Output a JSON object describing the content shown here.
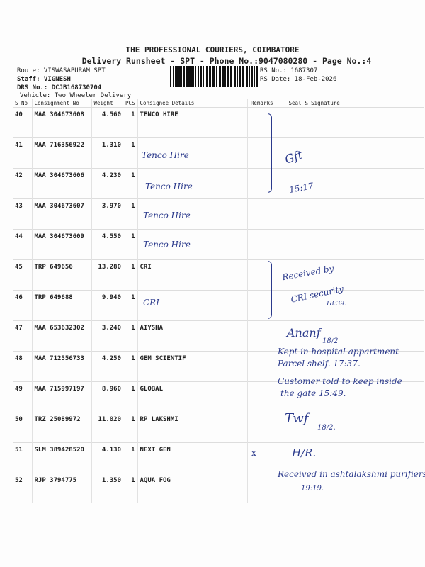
{
  "header": {
    "title": "THE PROFESSIONAL COURIERS, COIMBATORE",
    "subtitle": "Delivery Runsheet - SPT - Phone No.:9047080280 - Page No.:4",
    "route": "Route: VISWASAPURAM SPT",
    "staff": "Staff: VIGNESH",
    "drs": "DRS No.: DCJB168730704",
    "vehicle": "Vehicle: Two Wheeler Delivery",
    "rs_no": "RS No.: 1687307",
    "rs_date": "RS Date: 18-Feb-2026"
  },
  "columns": [
    "S No",
    "Consignment No",
    "Weight",
    "PCS",
    "Consignee Details",
    "Remarks",
    "Seal & Signature"
  ],
  "rows": [
    {
      "sno": "40",
      "cno": "MAA 304673608",
      "weight": "4.560",
      "pcs": "1",
      "consignee": "TENCO HIRE",
      "remarks": ""
    },
    {
      "sno": "41",
      "cno": "MAA 716356922",
      "weight": "1.310",
      "pcs": "1",
      "consignee": "",
      "remarks": ""
    },
    {
      "sno": "42",
      "cno": "MAA 304673606",
      "weight": "4.230",
      "pcs": "1",
      "consignee": "",
      "remarks": ""
    },
    {
      "sno": "43",
      "cno": "MAA 304673607",
      "weight": "3.970",
      "pcs": "1",
      "consignee": "",
      "remarks": ""
    },
    {
      "sno": "44",
      "cno": "MAA 304673609",
      "weight": "4.550",
      "pcs": "1",
      "consignee": "",
      "remarks": ""
    },
    {
      "sno": "45",
      "cno": "TRP 649656",
      "weight": "13.280",
      "pcs": "1",
      "consignee": "CRI",
      "remarks": ""
    },
    {
      "sno": "46",
      "cno": "TRP 649688",
      "weight": "9.940",
      "pcs": "1",
      "consignee": "",
      "remarks": ""
    },
    {
      "sno": "47",
      "cno": "MAA 653632302",
      "weight": "3.240",
      "pcs": "1",
      "consignee": "AIYSHA",
      "remarks": ""
    },
    {
      "sno": "48",
      "cno": "MAA 712556733",
      "weight": "4.250",
      "pcs": "1",
      "consignee": "GEM SCIENTIF",
      "remarks": ""
    },
    {
      "sno": "49",
      "cno": "MAA 715997197",
      "weight": "8.960",
      "pcs": "1",
      "consignee": "GLOBAL",
      "remarks": ""
    },
    {
      "sno": "50",
      "cno": "TRZ 25089972",
      "weight": "11.020",
      "pcs": "1",
      "consignee": "RP LAKSHMI",
      "remarks": ""
    },
    {
      "sno": "51",
      "cno": "SLM 389428520",
      "weight": "4.130",
      "pcs": "1",
      "consignee": "NEXT GEN",
      "remarks": "x"
    },
    {
      "sno": "52",
      "cno": "RJP 3794775",
      "weight": "1.350",
      "pcs": "1",
      "consignee": "AQUA FOG",
      "remarks": ""
    }
  ],
  "handwriting": {
    "tenco41": "Tenco Hire",
    "tenco42": "Tenco Hire",
    "tenco43": "Tenco Hire",
    "tenco44": "Tenco Hire",
    "cri46": "CRI",
    "time_tenco": "15:17",
    "cri_received": "Received by",
    "cri_security": "CRI security",
    "cri_time": "18:39.",
    "date47": "18/2",
    "note48a": "Kept in hospital appartment",
    "note48b": "Parcel shelf. 17:37.",
    "note49a": "Customer told to keep inside",
    "note49b": "the gate  15:49.",
    "date50": "18/2.",
    "hr51": "H/R.",
    "note52a": "Received in ashtalakshmi purifiers",
    "note52b": "19:19."
  },
  "colors": {
    "ink": "#2b3a8c",
    "text": "#222222"
  }
}
